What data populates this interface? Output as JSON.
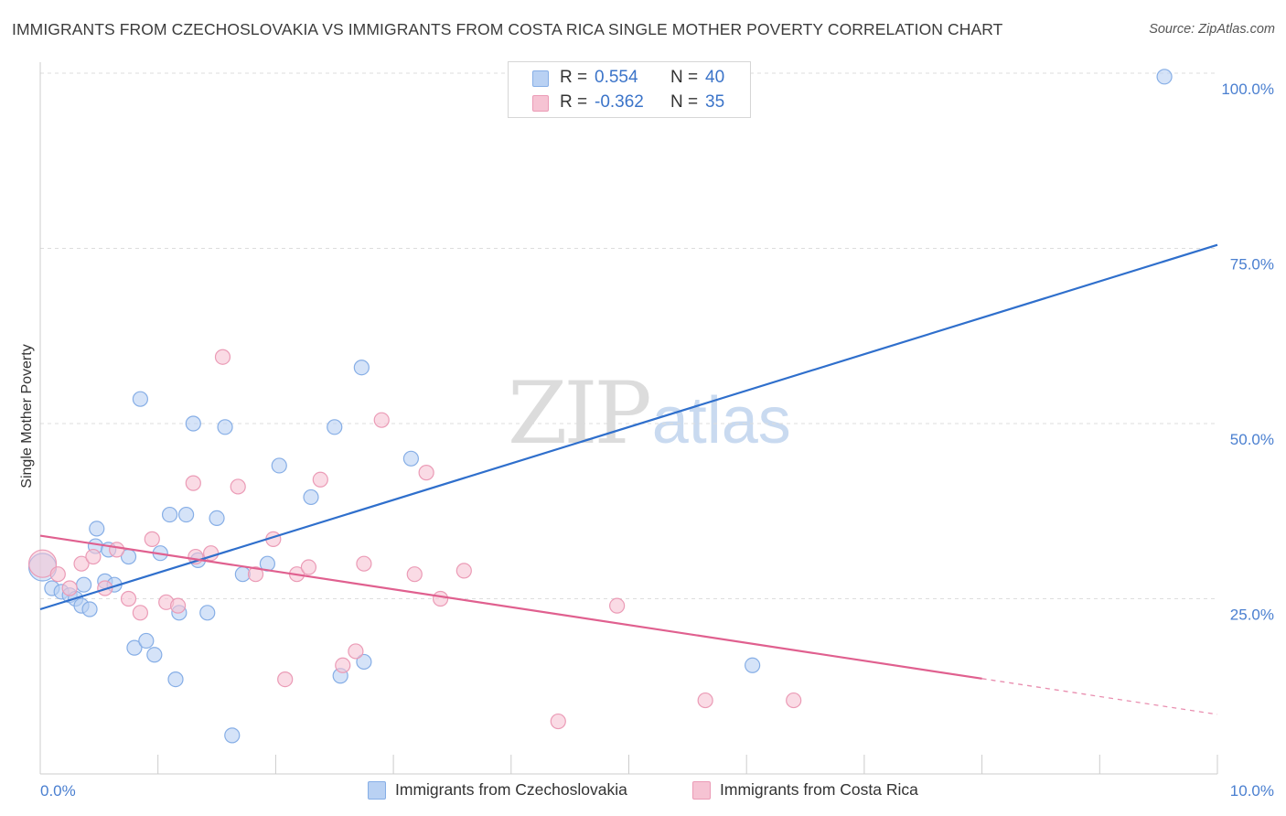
{
  "title": "IMMIGRANTS FROM CZECHOSLOVAKIA VS IMMIGRANTS FROM COSTA RICA SINGLE MOTHER POVERTY CORRELATION CHART",
  "source": "Source: ZipAtlas.com",
  "watermark": {
    "zip": "ZIP",
    "atlas": "atlas"
  },
  "legend": {
    "r_label": "R =",
    "n_label": "N =",
    "rows": [
      {
        "r": "0.554",
        "n": "40"
      },
      {
        "r": "-0.362",
        "n": "35"
      }
    ]
  },
  "chart_data": {
    "type": "scatter",
    "xlabel": "",
    "ylabel": "Single Mother Poverty",
    "xlim": [
      0,
      10
    ],
    "ylim": [
      0,
      100
    ],
    "x_tick_labels": [
      "0.0%",
      "10.0%"
    ],
    "y_tick_labels": [
      "25.0%",
      "50.0%",
      "75.0%",
      "100.0%"
    ],
    "y_ticks": [
      25,
      50,
      75,
      100
    ],
    "grid": true,
    "legend_position": "top-center",
    "colors": {
      "blue_fill": "#b9d1f3",
      "blue_stroke": "#86aee6",
      "blue_line": "#2f6fcc",
      "pink_fill": "#f6c3d3",
      "pink_stroke": "#eb9bb6",
      "pink_line": "#e0608f",
      "tick_text": "#4a7fd0",
      "grid": "#dddddd",
      "axis": "#cccccc"
    },
    "series": [
      {
        "name": "Immigrants from Czechoslovakia",
        "color": "#b9d1f3",
        "trend": {
          "x0": 0,
          "y0": 23.5,
          "x1": 10,
          "y1": 75.5,
          "solid_until": 10
        },
        "points": [
          [
            0.02,
            29.5
          ],
          [
            0.1,
            26.5
          ],
          [
            0.18,
            26
          ],
          [
            0.25,
            25.5
          ],
          [
            0.3,
            25
          ],
          [
            0.35,
            24
          ],
          [
            0.37,
            27
          ],
          [
            0.42,
            23.5
          ],
          [
            0.47,
            32.5
          ],
          [
            0.48,
            35
          ],
          [
            0.55,
            27.5
          ],
          [
            0.58,
            32
          ],
          [
            0.63,
            27
          ],
          [
            0.75,
            31
          ],
          [
            0.8,
            18
          ],
          [
            0.85,
            53.5
          ],
          [
            0.9,
            19
          ],
          [
            0.97,
            17
          ],
          [
            1.02,
            31.5
          ],
          [
            1.1,
            37
          ],
          [
            1.15,
            13.5
          ],
          [
            1.18,
            23
          ],
          [
            1.24,
            37
          ],
          [
            1.3,
            50
          ],
          [
            1.34,
            30.5
          ],
          [
            1.42,
            23
          ],
          [
            1.5,
            36.5
          ],
          [
            1.57,
            49.5
          ],
          [
            1.63,
            5.5
          ],
          [
            1.72,
            28.5
          ],
          [
            1.93,
            30
          ],
          [
            2.03,
            44
          ],
          [
            2.3,
            39.5
          ],
          [
            2.5,
            49.5
          ],
          [
            2.55,
            14
          ],
          [
            2.73,
            58
          ],
          [
            2.75,
            16
          ],
          [
            3.15,
            45
          ],
          [
            6.05,
            15.5
          ],
          [
            9.55,
            99.5
          ]
        ]
      },
      {
        "name": "Immigrants from Costa Rica",
        "color": "#f6c3d3",
        "trend": {
          "x0": 0,
          "y0": 34,
          "x1": 10,
          "y1": 8.5,
          "solid_until": 8
        },
        "points": [
          [
            0.02,
            30
          ],
          [
            0.15,
            28.5
          ],
          [
            0.25,
            26.5
          ],
          [
            0.35,
            30
          ],
          [
            0.45,
            31
          ],
          [
            0.55,
            26.5
          ],
          [
            0.65,
            32
          ],
          [
            0.75,
            25
          ],
          [
            0.85,
            23
          ],
          [
            0.95,
            33.5
          ],
          [
            1.07,
            24.5
          ],
          [
            1.17,
            24
          ],
          [
            1.3,
            41.5
          ],
          [
            1.32,
            31
          ],
          [
            1.45,
            31.5
          ],
          [
            1.55,
            59.5
          ],
          [
            1.68,
            41
          ],
          [
            1.83,
            28.5
          ],
          [
            1.98,
            33.5
          ],
          [
            2.08,
            13.5
          ],
          [
            2.18,
            28.5
          ],
          [
            2.28,
            29.5
          ],
          [
            2.38,
            42
          ],
          [
            2.57,
            15.5
          ],
          [
            2.68,
            17.5
          ],
          [
            2.75,
            30
          ],
          [
            2.9,
            50.5
          ],
          [
            3.18,
            28.5
          ],
          [
            3.28,
            43
          ],
          [
            3.4,
            25
          ],
          [
            3.6,
            29
          ],
          [
            4.4,
            7.5
          ],
          [
            4.9,
            24
          ],
          [
            5.65,
            10.5
          ],
          [
            6.4,
            10.5
          ]
        ]
      }
    ]
  }
}
